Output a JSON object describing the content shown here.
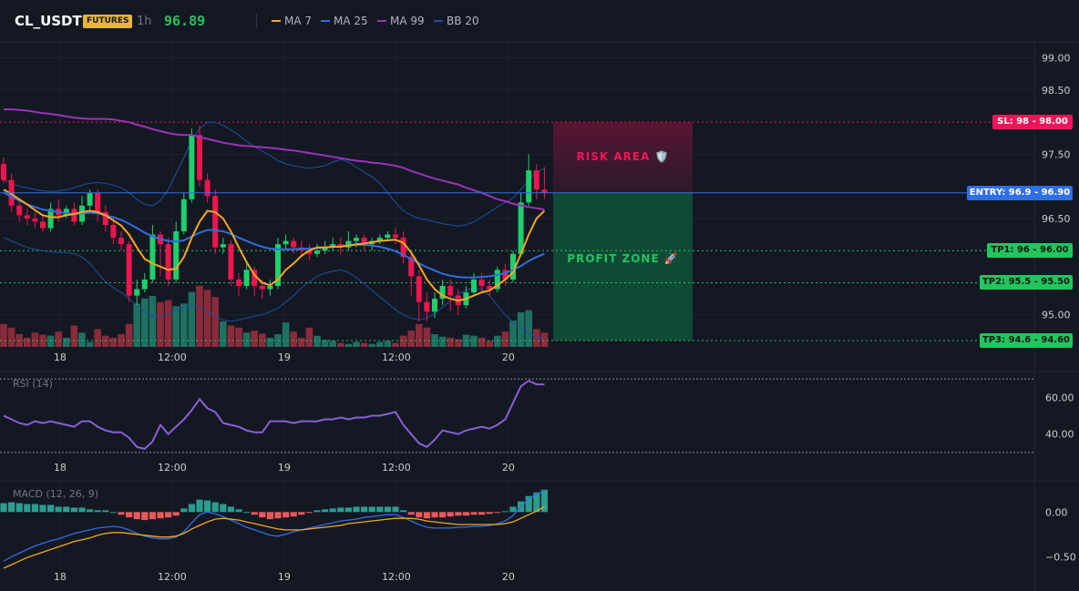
{
  "header": {
    "symbol": "CL_USDT",
    "badge": "FUTURES",
    "timeframe": "1h",
    "last_price": "96.89",
    "legend": [
      {
        "label": "MA 7",
        "color": "#f5a623"
      },
      {
        "label": "MA 25",
        "color": "#2f6fe0"
      },
      {
        "label": "MA 99",
        "color": "#9b33b8"
      },
      {
        "label": "BB 20",
        "color": "#1f4fa0"
      }
    ]
  },
  "levels": {
    "sl": {
      "label": "SL: 98 - 98.00",
      "value": 98.0,
      "color": "#f0145a"
    },
    "entry": {
      "label": "ENTRY: 96.9 - 96.90",
      "value": 96.9,
      "color": "#2f6fe8"
    },
    "tp1": {
      "label": "TP1: 96 - 96.00",
      "value": 96.0,
      "color": "#22c55e"
    },
    "tp2": {
      "label": "TP2: 95.5 - 95.50",
      "value": 95.5,
      "color": "#22c55e"
    },
    "tp3": {
      "label": "TP3: 94.6 - 94.60",
      "value": 94.6,
      "color": "#22c55e"
    }
  },
  "zones": {
    "risk_label": "RISK AREA 🛡️",
    "profit_label": "PROFIT ZONE 🚀"
  },
  "colors": {
    "up": "#1ecf6b",
    "down": "#f0144f",
    "vol_up": "#1e7060",
    "vol_down": "#8a2a3a",
    "rsi": "#8a5fd6",
    "macd": "#2f6fe0",
    "signal": "#f5a623",
    "hist_up": "#2a9d8f",
    "hist_down": "#e85a5a"
  },
  "chart_data": [
    {
      "type": "candlestick",
      "title": "",
      "x_ticks": [
        "18",
        "12:00",
        "19",
        "12:00",
        "20"
      ],
      "ylim": [
        94.5,
        99.25
      ],
      "y_ticks": [
        "99.00",
        "98.50",
        "97.50",
        "96.50",
        "95.00"
      ],
      "y_tick_values": [
        99.0,
        98.5,
        97.5,
        96.5,
        95.0
      ],
      "candles": [
        [
          97.35,
          97.1,
          97.45,
          97.05
        ],
        [
          97.1,
          96.7,
          97.2,
          96.6
        ],
        [
          96.7,
          96.55,
          96.8,
          96.45
        ],
        [
          96.55,
          96.5,
          96.65,
          96.4
        ],
        [
          96.5,
          96.45,
          96.6,
          96.35
        ],
        [
          96.45,
          96.35,
          96.55,
          96.3
        ],
        [
          96.35,
          96.65,
          96.75,
          96.3
        ],
        [
          96.65,
          96.55,
          96.8,
          96.45
        ],
        [
          96.55,
          96.65,
          96.7,
          96.5
        ],
        [
          96.65,
          96.45,
          96.75,
          96.4
        ],
        [
          96.45,
          96.7,
          96.85,
          96.4
        ],
        [
          96.7,
          96.9,
          96.95,
          96.6
        ],
        [
          96.9,
          96.6,
          96.95,
          96.45
        ],
        [
          96.6,
          96.4,
          96.7,
          96.3
        ],
        [
          96.4,
          96.2,
          96.5,
          96.1
        ],
        [
          96.2,
          96.1,
          96.3,
          96.0
        ],
        [
          96.1,
          95.3,
          96.15,
          95.2
        ],
        [
          95.3,
          95.4,
          95.55,
          95.15
        ],
        [
          95.4,
          95.55,
          95.65,
          95.35
        ],
        [
          95.55,
          96.25,
          96.4,
          95.5
        ],
        [
          96.25,
          96.1,
          96.3,
          95.6
        ],
        [
          96.1,
          95.55,
          96.2,
          95.45
        ],
        [
          95.55,
          96.3,
          96.45,
          95.5
        ],
        [
          96.3,
          96.8,
          96.9,
          96.25
        ],
        [
          96.8,
          97.8,
          97.9,
          96.75
        ],
        [
          97.8,
          97.1,
          97.95,
          97.0
        ],
        [
          97.1,
          96.85,
          97.2,
          96.75
        ],
        [
          96.85,
          96.05,
          96.95,
          95.95
        ],
        [
          96.05,
          96.1,
          96.2,
          95.95
        ],
        [
          96.1,
          95.55,
          96.15,
          95.45
        ],
        [
          95.55,
          95.45,
          95.65,
          95.3
        ],
        [
          95.45,
          95.7,
          95.8,
          95.4
        ],
        [
          95.7,
          95.45,
          95.75,
          95.3
        ],
        [
          95.45,
          95.4,
          95.55,
          95.25
        ],
        [
          95.4,
          95.45,
          95.55,
          95.3
        ],
        [
          95.45,
          96.1,
          96.2,
          95.4
        ],
        [
          96.1,
          96.15,
          96.25,
          96.0
        ],
        [
          96.15,
          96.05,
          96.2,
          95.95
        ],
        [
          96.05,
          96.0,
          96.15,
          95.9
        ],
        [
          96.0,
          95.95,
          96.1,
          95.85
        ],
        [
          95.95,
          96.0,
          96.1,
          95.9
        ],
        [
          96.0,
          96.05,
          96.15,
          95.95
        ],
        [
          96.05,
          96.1,
          96.2,
          96.0
        ],
        [
          96.1,
          96.05,
          96.2,
          95.95
        ],
        [
          96.05,
          96.15,
          96.3,
          96.0
        ],
        [
          96.15,
          96.2,
          96.25,
          96.05
        ],
        [
          96.2,
          96.1,
          96.25,
          96.0
        ],
        [
          96.1,
          96.15,
          96.2,
          96.0
        ],
        [
          96.15,
          96.2,
          96.25,
          96.1
        ],
        [
          96.2,
          96.25,
          96.3,
          96.15
        ],
        [
          96.25,
          96.2,
          96.35,
          96.1
        ],
        [
          96.2,
          95.9,
          96.3,
          95.8
        ],
        [
          95.9,
          95.6,
          95.95,
          95.3
        ],
        [
          95.6,
          95.2,
          95.7,
          94.9
        ],
        [
          95.2,
          95.05,
          95.35,
          94.9
        ],
        [
          95.05,
          95.25,
          95.35,
          94.95
        ],
        [
          95.25,
          95.45,
          95.55,
          95.15
        ],
        [
          95.45,
          95.3,
          95.55,
          95.05
        ],
        [
          95.3,
          95.15,
          95.4,
          95.0
        ],
        [
          95.15,
          95.35,
          95.45,
          95.1
        ],
        [
          95.35,
          95.55,
          95.65,
          95.3
        ],
        [
          95.55,
          95.45,
          95.65,
          95.35
        ],
        [
          95.45,
          95.4,
          95.55,
          95.3
        ],
        [
          95.4,
          95.7,
          95.75,
          95.35
        ],
        [
          95.7,
          95.55,
          95.8,
          95.45
        ],
        [
          95.55,
          95.95,
          96.0,
          95.5
        ],
        [
          95.95,
          96.75,
          96.9,
          95.9
        ],
        [
          96.75,
          97.25,
          97.5,
          96.7
        ],
        [
          97.25,
          96.95,
          97.35,
          96.8
        ],
        [
          96.95,
          96.9,
          97.3,
          96.8
        ]
      ],
      "ma7": [
        96.95,
        96.88,
        96.8,
        96.72,
        96.63,
        96.55,
        96.52,
        96.52,
        96.55,
        96.57,
        96.6,
        96.62,
        96.6,
        96.55,
        96.47,
        96.39,
        96.25,
        96.05,
        95.87,
        95.8,
        95.75,
        95.7,
        95.72,
        95.9,
        96.2,
        96.45,
        96.62,
        96.6,
        96.5,
        96.3,
        96.05,
        95.82,
        95.62,
        95.5,
        95.46,
        95.55,
        95.7,
        95.8,
        95.92,
        96.0,
        96.05,
        96.05,
        96.06,
        96.06,
        96.08,
        96.1,
        96.11,
        96.13,
        96.15,
        96.16,
        96.17,
        96.12,
        95.97,
        95.77,
        95.55,
        95.4,
        95.3,
        95.25,
        95.22,
        95.25,
        95.3,
        95.35,
        95.38,
        95.46,
        95.55,
        95.66,
        95.95,
        96.25,
        96.5,
        96.62
      ],
      "ma25": [
        96.9,
        96.84,
        96.78,
        96.72,
        96.68,
        96.64,
        96.62,
        96.6,
        96.58,
        96.57,
        96.58,
        96.59,
        96.58,
        96.55,
        96.52,
        96.48,
        96.42,
        96.35,
        96.28,
        96.22,
        96.18,
        96.15,
        96.14,
        96.16,
        96.22,
        96.28,
        96.32,
        96.32,
        96.3,
        96.26,
        96.2,
        96.15,
        96.1,
        96.06,
        96.03,
        96.02,
        96.02,
        96.02,
        96.03,
        96.03,
        96.04,
        96.05,
        96.06,
        96.07,
        96.08,
        96.09,
        96.09,
        96.08,
        96.06,
        96.03,
        95.99,
        95.93,
        95.87,
        95.8,
        95.74,
        95.69,
        95.64,
        95.61,
        95.59,
        95.58,
        95.58,
        95.59,
        95.6,
        95.62,
        95.65,
        95.7,
        95.76,
        95.84,
        95.9,
        95.95
      ],
      "ma99": [
        98.2,
        98.2,
        98.19,
        98.18,
        98.16,
        98.14,
        98.13,
        98.11,
        98.09,
        98.07,
        98.06,
        98.05,
        98.05,
        98.05,
        98.04,
        98.02,
        98.0,
        97.96,
        97.93,
        97.89,
        97.86,
        97.83,
        97.81,
        97.8,
        97.8,
        97.77,
        97.74,
        97.71,
        97.68,
        97.66,
        97.64,
        97.63,
        97.62,
        97.61,
        97.6,
        97.59,
        97.57,
        97.56,
        97.54,
        97.52,
        97.5,
        97.48,
        97.46,
        97.44,
        97.42,
        97.4,
        97.39,
        97.37,
        97.36,
        97.34,
        97.32,
        97.29,
        97.24,
        97.2,
        97.16,
        97.12,
        97.09,
        97.06,
        97.03,
        96.98,
        96.94,
        96.9,
        96.85,
        96.8,
        96.77,
        96.73,
        96.7,
        96.68,
        96.66,
        96.64
      ],
      "bb_upper": [
        97.1,
        97.05,
        97.0,
        96.98,
        96.95,
        96.93,
        96.92,
        96.93,
        96.95,
        96.98,
        97.02,
        97.05,
        97.06,
        97.05,
        97.02,
        96.98,
        96.9,
        96.8,
        96.72,
        96.7,
        96.78,
        96.95,
        97.2,
        97.45,
        97.72,
        97.9,
        98.0,
        98.0,
        97.95,
        97.88,
        97.8,
        97.7,
        97.62,
        97.55,
        97.48,
        97.4,
        97.35,
        97.32,
        97.3,
        97.28,
        97.3,
        97.32,
        97.38,
        97.42,
        97.38,
        97.3,
        97.22,
        97.15,
        97.05,
        96.9,
        96.75,
        96.62,
        96.55,
        96.5,
        96.48,
        96.45,
        96.42,
        96.4,
        96.38,
        96.4,
        96.45,
        96.52,
        96.6,
        96.68,
        96.75,
        96.82,
        96.95,
        97.1,
        97.22,
        97.28
      ],
      "bb_lower": [
        96.2,
        96.15,
        96.1,
        96.05,
        96.02,
        96.0,
        95.98,
        95.97,
        95.97,
        95.95,
        95.9,
        95.8,
        95.65,
        95.52,
        95.42,
        95.35,
        95.25,
        95.15,
        95.05,
        94.98,
        94.98,
        95.02,
        95.08,
        95.12,
        95.15,
        95.12,
        95.05,
        94.98,
        94.92,
        94.9,
        94.92,
        94.95,
        94.98,
        95.0,
        95.05,
        95.1,
        95.2,
        95.3,
        95.42,
        95.52,
        95.6,
        95.65,
        95.68,
        95.7,
        95.66,
        95.58,
        95.48,
        95.38,
        95.28,
        95.18,
        95.08,
        95.0,
        94.95,
        94.92,
        94.95,
        95.02,
        95.12,
        95.22,
        95.32,
        95.38,
        95.42,
        95.4,
        95.3,
        95.15,
        95.0,
        94.88,
        94.8,
        94.72,
        94.66,
        94.62
      ],
      "volume": [
        45,
        38,
        25,
        18,
        28,
        24,
        22,
        30,
        18,
        42,
        28,
        10,
        35,
        22,
        18,
        25,
        45,
        85,
        95,
        100,
        88,
        92,
        80,
        85,
        108,
        120,
        112,
        98,
        50,
        42,
        38,
        28,
        32,
        26,
        18,
        25,
        48,
        30,
        18,
        38,
        22,
        14,
        12,
        8,
        6,
        10,
        8,
        6,
        10,
        12,
        8,
        22,
        32,
        45,
        38,
        25,
        20,
        18,
        15,
        24,
        22,
        18,
        12,
        22,
        30,
        52,
        68,
        72,
        35,
        28
      ]
    },
    {
      "type": "line",
      "title": "RSI (14)",
      "x_ticks": [
        "18",
        "12:00",
        "19",
        "12:00",
        "20"
      ],
      "y_ticks": [
        "60.00",
        "40.00"
      ],
      "ylim": [
        25,
        74
      ],
      "levels": [
        70,
        30
      ],
      "values": [
        50,
        48,
        46,
        45,
        47,
        46,
        47,
        46,
        45,
        44,
        47,
        47,
        44,
        42,
        41,
        41,
        38,
        33,
        32,
        36,
        45,
        40,
        44,
        48,
        53,
        59,
        54,
        52,
        46,
        45,
        44,
        42,
        41,
        41,
        47,
        47,
        47,
        46,
        47,
        47,
        47,
        48,
        48,
        49,
        48,
        49,
        49,
        50,
        50,
        51,
        52,
        45,
        40,
        35,
        33,
        37,
        42,
        41,
        40,
        42,
        43,
        44,
        43,
        45,
        48,
        57,
        66,
        69,
        67,
        67
      ]
    },
    {
      "type": "bar",
      "title": "MACD (12, 26, 9)",
      "x_ticks": [
        "18",
        "12:00",
        "19",
        "12:00",
        "20"
      ],
      "y_ticks": [
        "0.00",
        "−0.50"
      ],
      "ylim": [
        -0.64,
        0.34
      ],
      "histogram": [
        0.1,
        0.11,
        0.1,
        0.09,
        0.09,
        0.08,
        0.08,
        0.06,
        0.06,
        0.05,
        0.05,
        0.03,
        0.02,
        0.02,
        0.0,
        -0.03,
        -0.06,
        -0.08,
        -0.09,
        -0.08,
        -0.07,
        -0.06,
        -0.04,
        0.04,
        0.09,
        0.14,
        0.13,
        0.11,
        0.09,
        0.06,
        0.03,
        0.0,
        -0.03,
        -0.06,
        -0.08,
        -0.07,
        -0.06,
        -0.05,
        -0.03,
        -0.01,
        0.02,
        0.03,
        0.04,
        0.05,
        0.05,
        0.06,
        0.06,
        0.06,
        0.06,
        0.06,
        0.06,
        0.02,
        -0.03,
        -0.06,
        -0.07,
        -0.06,
        -0.06,
        -0.05,
        -0.04,
        -0.04,
        -0.03,
        -0.03,
        -0.02,
        -0.01,
        0.01,
        0.06,
        0.12,
        0.18,
        0.22,
        0.25
      ],
      "macd": [
        -0.55,
        -0.5,
        -0.46,
        -0.42,
        -0.38,
        -0.35,
        -0.32,
        -0.3,
        -0.27,
        -0.24,
        -0.22,
        -0.2,
        -0.18,
        -0.17,
        -0.16,
        -0.17,
        -0.2,
        -0.24,
        -0.27,
        -0.29,
        -0.3,
        -0.3,
        -0.28,
        -0.22,
        -0.12,
        -0.03,
        0.0,
        -0.02,
        -0.05,
        -0.09,
        -0.13,
        -0.17,
        -0.2,
        -0.23,
        -0.26,
        -0.27,
        -0.25,
        -0.22,
        -0.2,
        -0.18,
        -0.16,
        -0.14,
        -0.12,
        -0.1,
        -0.09,
        -0.08,
        -0.06,
        -0.05,
        -0.04,
        -0.03,
        -0.03,
        -0.06,
        -0.1,
        -0.14,
        -0.17,
        -0.18,
        -0.18,
        -0.18,
        -0.17,
        -0.17,
        -0.16,
        -0.16,
        -0.15,
        -0.13,
        -0.1,
        -0.04,
        0.06,
        0.15,
        0.2,
        0.24
      ],
      "signal": [
        -0.63,
        -0.59,
        -0.55,
        -0.51,
        -0.48,
        -0.45,
        -0.42,
        -0.39,
        -0.36,
        -0.33,
        -0.31,
        -0.29,
        -0.26,
        -0.24,
        -0.23,
        -0.23,
        -0.24,
        -0.25,
        -0.26,
        -0.27,
        -0.28,
        -0.28,
        -0.27,
        -0.24,
        -0.19,
        -0.15,
        -0.11,
        -0.08,
        -0.07,
        -0.08,
        -0.09,
        -0.11,
        -0.13,
        -0.15,
        -0.17,
        -0.19,
        -0.2,
        -0.2,
        -0.2,
        -0.19,
        -0.18,
        -0.17,
        -0.16,
        -0.15,
        -0.13,
        -0.12,
        -0.11,
        -0.1,
        -0.09,
        -0.08,
        -0.07,
        -0.07,
        -0.07,
        -0.08,
        -0.1,
        -0.11,
        -0.12,
        -0.13,
        -0.14,
        -0.14,
        -0.14,
        -0.14,
        -0.14,
        -0.14,
        -0.13,
        -0.11,
        -0.07,
        -0.03,
        0.01,
        0.06
      ]
    }
  ]
}
